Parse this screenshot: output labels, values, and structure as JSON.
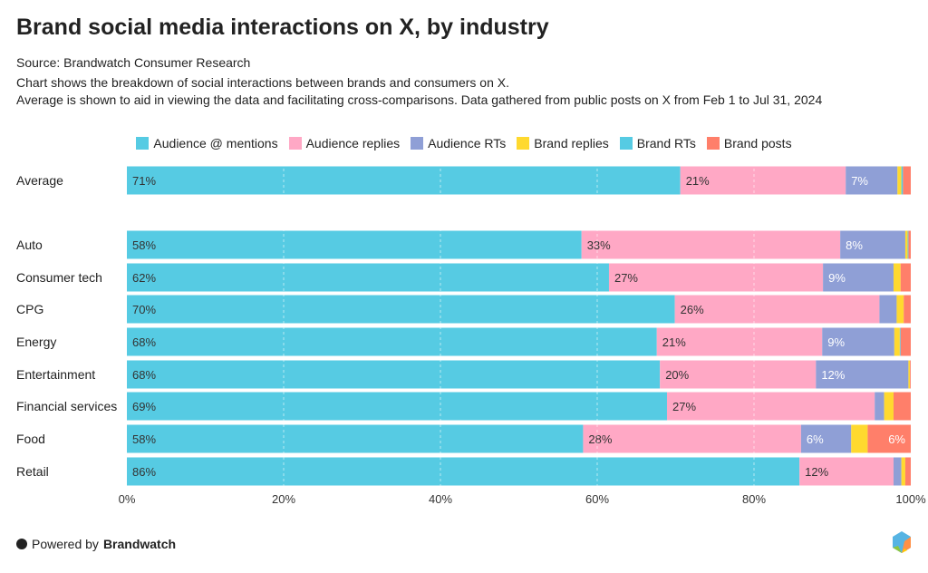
{
  "header": {
    "title": "Brand social media interactions on X, by industry",
    "source": "Source: Brandwatch Consumer Research",
    "description1": "Chart shows the breakdown of social interactions between brands and consumers on X.",
    "description2": "Average is shown to aid in viewing the data and facilitating cross-comparisons. Data gathered from public posts on X from Feb 1 to Jul 31, 2024"
  },
  "footer": {
    "powered_by": "Powered by",
    "brand": "Brandwatch"
  },
  "chart_data": {
    "type": "bar",
    "orientation": "horizontal",
    "stacked": true,
    "categories": [
      "Average",
      "Auto",
      "Consumer tech",
      "CPG",
      "Energy",
      "Entertainment",
      "Financial services",
      "Food",
      "Retail"
    ],
    "series": [
      {
        "name": "Audience @ mentions",
        "color": "#56CBE3",
        "values": [
          70.6,
          58.0,
          61.5,
          69.9,
          67.6,
          68.0,
          68.9,
          58.2,
          85.8
        ]
      },
      {
        "name": "Audience replies",
        "color": "#FFA8C5",
        "values": [
          21.1,
          33.0,
          27.3,
          26.1,
          21.1,
          19.9,
          26.5,
          27.8,
          12.0
        ]
      },
      {
        "name": "Audience RTs",
        "color": "#8F9FD6",
        "values": [
          6.6,
          8.3,
          9.0,
          2.2,
          9.2,
          11.8,
          1.2,
          6.4,
          1.0
        ]
      },
      {
        "name": "Brand replies",
        "color": "#FFD92F",
        "values": [
          0.5,
          0.3,
          0.9,
          0.9,
          0.7,
          0.2,
          1.2,
          2.1,
          0.5
        ]
      },
      {
        "name": "Brand RTs",
        "color": "#56CBE3",
        "values": [
          0.2,
          0.1,
          0.0,
          0.0,
          0.1,
          0.0,
          0.0,
          0.0,
          0.0
        ]
      },
      {
        "name": "Brand posts",
        "color": "#FF7F6A",
        "values": [
          1.0,
          0.3,
          1.3,
          0.9,
          1.3,
          0.1,
          2.2,
          5.5,
          0.7
        ]
      }
    ],
    "xlim": [
      0,
      100
    ],
    "x_ticks": [
      "0%",
      "20%",
      "40%",
      "60%",
      "80%",
      "100%"
    ],
    "grid": true,
    "legend": "top"
  }
}
